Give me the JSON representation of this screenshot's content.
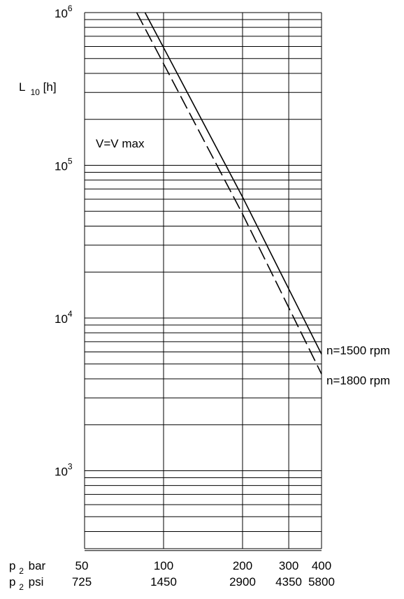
{
  "chart_data": {
    "type": "line",
    "x_scale": "log",
    "y_scale": "log",
    "x_range_bar": [
      50,
      400
    ],
    "y_range_hours": [
      300,
      1000000
    ],
    "grid": true,
    "y_axis_label": {
      "main": "L",
      "sub": "10",
      "unit": "[h]"
    },
    "y_ticks": [
      {
        "base": "10",
        "exp": "3",
        "value": 1000
      },
      {
        "base": "10",
        "exp": "4",
        "value": 10000
      },
      {
        "base": "10",
        "exp": "5",
        "value": 100000
      },
      {
        "base": "10",
        "exp": "6",
        "value": 1000000
      }
    ],
    "x_axis_rows": [
      {
        "label_main": "p",
        "label_sub": "2",
        "label_unit": "bar",
        "ticks": [
          "50",
          "100",
          "200",
          "300",
          "400"
        ]
      },
      {
        "label_main": "p",
        "label_sub": "2",
        "label_unit": "psi",
        "ticks": [
          "725",
          "1450",
          "2900",
          "4350",
          "5800"
        ]
      }
    ],
    "x_tick_values_bar": [
      50,
      100,
      200,
      300,
      400
    ],
    "annotation": "V=V max",
    "series": [
      {
        "name": "n=1500 rpm",
        "dash": "solid",
        "points": [
          [
            85,
            1000000
          ],
          [
            200,
            62000
          ],
          [
            400,
            5800
          ]
        ]
      },
      {
        "name": "n=1800 rpm",
        "dash": "dashed",
        "points": [
          [
            79,
            1000000
          ],
          [
            200,
            48000
          ],
          [
            400,
            4300
          ]
        ]
      }
    ]
  }
}
